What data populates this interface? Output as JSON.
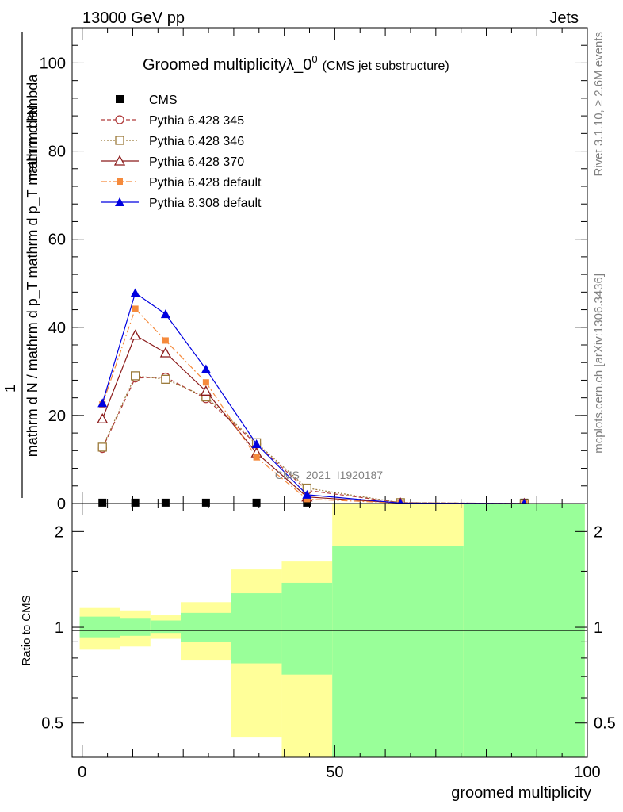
{
  "header": {
    "left": "13000 GeV pp",
    "right": "Jets"
  },
  "side": {
    "rivet": "Rivet 3.1.10, ≥ 2.6M events",
    "mcplots": "mcplots.cern.ch [arXiv:1306.3436]"
  },
  "watermark": "CMS_2021_I1920187",
  "chart_data": [
    {
      "type": "line",
      "title_main": "Groomed multiplicityλ_0",
      "title_sup": "0",
      "title_sub": "(CMS jet substructure)",
      "ylabel_top": "1",
      "ylabel_bottom": "mathrm d N / mathrm d p_T mathrm d p_T mathrm d lambda",
      "ylabel_top_frac": "mathrm d²N",
      "xlim": [
        -2,
        100
      ],
      "ylim": [
        0,
        108
      ],
      "yticks": [
        0,
        20,
        40,
        60,
        80,
        100
      ],
      "x": [
        4,
        10.5,
        16.5,
        24.5,
        34.5,
        44.5,
        63,
        87.5
      ],
      "series": [
        {
          "name": "CMS",
          "marker": "square",
          "color": "#000000",
          "values": [
            0.2,
            0.2,
            0.2,
            0.2,
            0.2,
            0.2,
            0.2,
            0.2
          ]
        },
        {
          "name": "Pythia 6.428 345",
          "marker": "circle-open",
          "color": "#b03a3a",
          "dash": "5,3",
          "values": [
            12.5,
            28.5,
            28.7,
            23.8,
            13.5,
            3,
            0.2,
            0
          ]
        },
        {
          "name": "Pythia 6.428 346",
          "marker": "square-open",
          "color": "#9b7a3a",
          "dash": "2,2",
          "values": [
            12.8,
            29,
            28.2,
            24.2,
            13.8,
            3.5,
            0.2,
            0
          ]
        },
        {
          "name": "Pythia 6.428 370",
          "marker": "triangle-open",
          "color": "#8b1a1a",
          "dash": "",
          "values": [
            19.2,
            38.2,
            34.2,
            25.5,
            11.5,
            1.5,
            0.1,
            0
          ]
        },
        {
          "name": "Pythia 6.428 default",
          "marker": "square-filled",
          "color": "#f58a3c",
          "dash": "8,3,2,3",
          "values": [
            22.5,
            44.2,
            37,
            27.5,
            10.5,
            1,
            0.1,
            0
          ]
        },
        {
          "name": "Pythia 8.308 default",
          "marker": "triangle-filled",
          "color": "#0000e0",
          "dash": "",
          "values": [
            22.8,
            47.8,
            43,
            30.5,
            13.5,
            2,
            0.1,
            0
          ]
        }
      ],
      "legend_position": "top-left"
    },
    {
      "type": "area",
      "ylabel": "Ratio to CMS",
      "xlabel": "groomed multiplicity",
      "xticks": [
        0,
        50,
        100
      ],
      "yticks": [
        0.5,
        1,
        2
      ],
      "ylim": [
        0.39,
        2.45
      ],
      "scale": "log",
      "bins": [
        {
          "x0": -0.5,
          "x1": 7.5,
          "g_lo": 0.93,
          "g_hi": 1.08,
          "y_lo": 0.85,
          "y_hi": 1.15
        },
        {
          "x0": 7.5,
          "x1": 13.5,
          "g_lo": 0.94,
          "g_hi": 1.07,
          "y_lo": 0.87,
          "y_hi": 1.13
        },
        {
          "x0": 13.5,
          "x1": 19.5,
          "g_lo": 0.96,
          "g_hi": 1.05,
          "y_lo": 0.92,
          "y_hi": 1.09
        },
        {
          "x0": 19.5,
          "x1": 29.5,
          "g_lo": 0.9,
          "g_hi": 1.11,
          "y_lo": 0.79,
          "y_hi": 1.2
        },
        {
          "x0": 29.5,
          "x1": 39.5,
          "g_lo": 0.77,
          "g_hi": 1.28,
          "y_lo": 0.45,
          "y_hi": 1.52
        },
        {
          "x0": 39.5,
          "x1": 49.5,
          "g_lo": 0.71,
          "g_hi": 1.38,
          "y_lo": 0.39,
          "y_hi": 1.61
        },
        {
          "x0": 49.5,
          "x1": 75.5,
          "g_lo": 0.39,
          "g_hi": 1.8,
          "y_lo": 0.39,
          "y_hi": 2.45
        },
        {
          "x0": 75.5,
          "x1": 99.5,
          "g_lo": 0.39,
          "g_hi": 2.45,
          "y_lo": 0.39,
          "y_hi": 2.45
        }
      ],
      "colors": {
        "inner": "#99ff99",
        "outer": "#ffff99"
      }
    }
  ]
}
